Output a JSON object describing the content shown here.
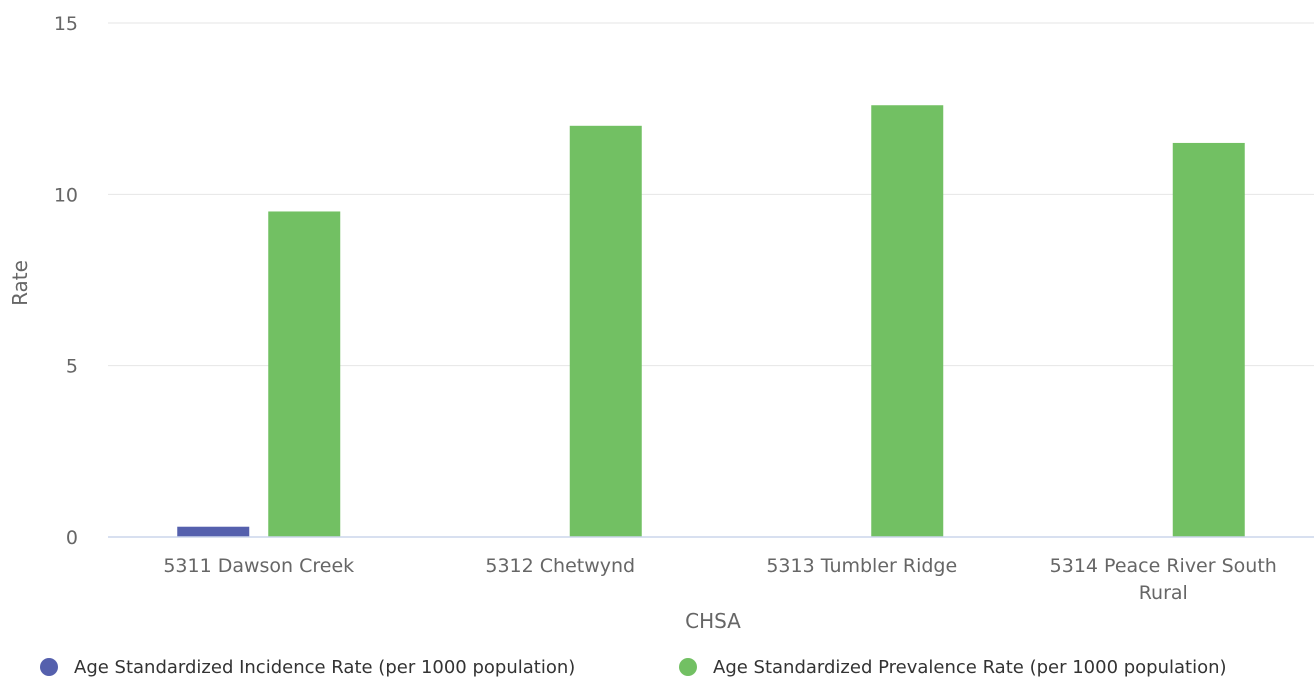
{
  "chart_data": {
    "type": "bar",
    "xlabel": "CHSA",
    "ylabel": "Rate",
    "ylim": [
      0,
      15
    ],
    "yticks": [
      0,
      5,
      10,
      15
    ],
    "grid": true,
    "legend_position": "bottom",
    "categories": [
      [
        "5311 Dawson Creek"
      ],
      [
        "5312 Chetwynd"
      ],
      [
        "5313 Tumbler Ridge"
      ],
      [
        "5314 Peace River South",
        "Rural"
      ]
    ],
    "series": [
      {
        "name": "Age Standardized Incidence Rate (per 1000 population)",
        "color": "#5560ad",
        "values": [
          0.3,
          null,
          null,
          null
        ]
      },
      {
        "name": "Age Standardized Prevalence Rate (per 1000 population)",
        "color": "#72c063",
        "values": [
          9.5,
          12.0,
          12.6,
          11.5
        ]
      }
    ]
  }
}
